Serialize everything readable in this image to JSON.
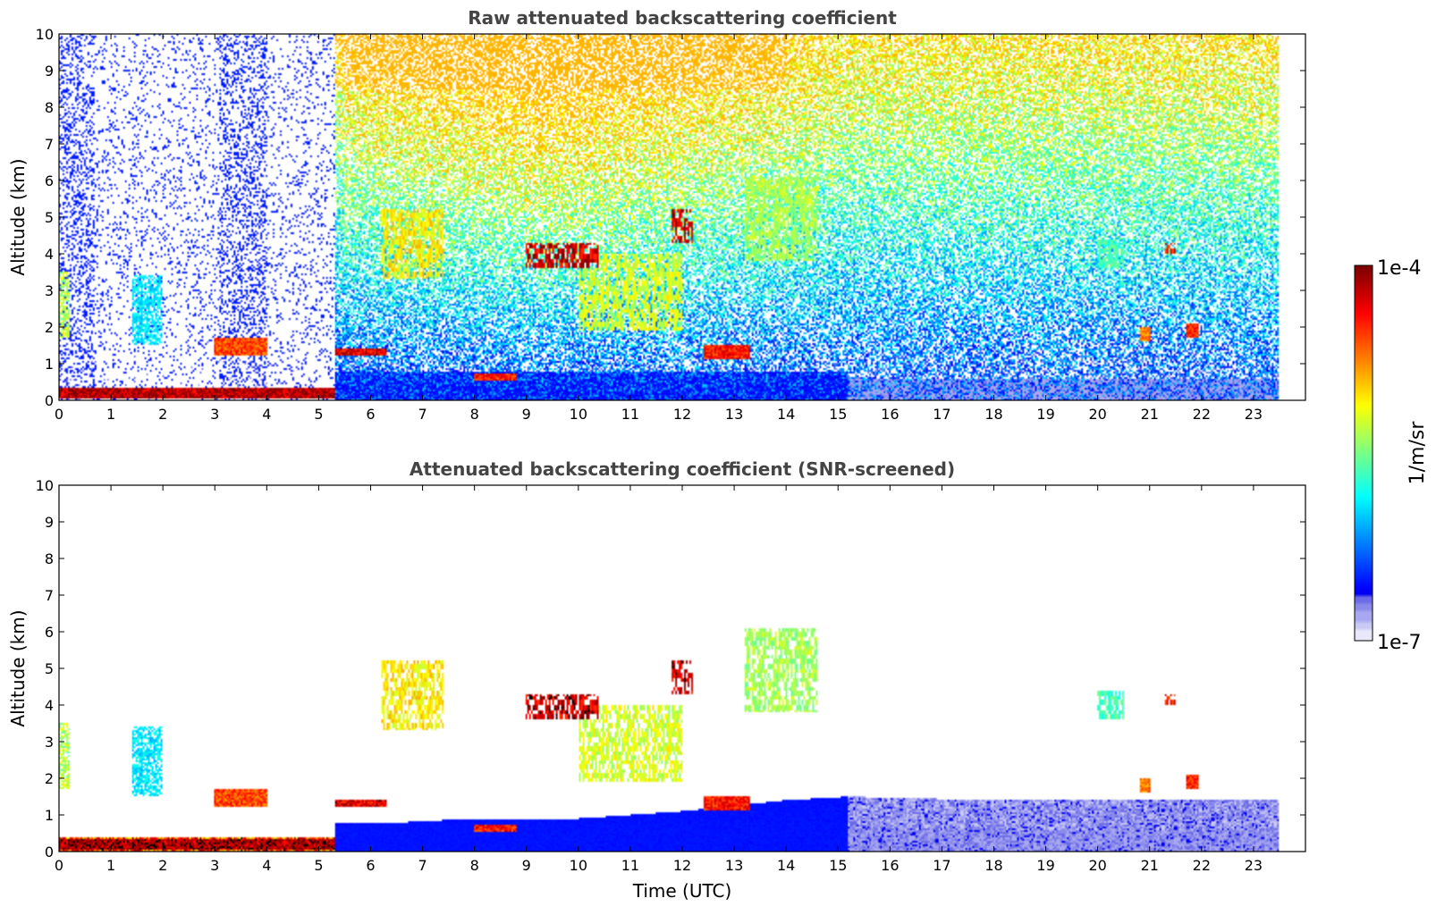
{
  "chart_data": [
    {
      "type": "heatmap",
      "title": "Raw attenuated backscattering coefficient",
      "xlabel": "",
      "ylabel": "Altitude (km)",
      "xlim": [
        0,
        24
      ],
      "ylim": [
        0,
        10
      ],
      "x_ticks": [
        "0",
        "1",
        "2",
        "3",
        "4",
        "5",
        "6",
        "7",
        "8",
        "9",
        "10",
        "11",
        "12",
        "13",
        "14",
        "15",
        "16",
        "17",
        "18",
        "19",
        "20",
        "21",
        "22",
        "23"
      ],
      "y_ticks": [
        "0",
        "1",
        "2",
        "3",
        "4",
        "5",
        "6",
        "7",
        "8",
        "9",
        "10"
      ],
      "data_end_time": 23.5,
      "features": [
        {
          "kind": "surface_layer",
          "t0": 0,
          "t1": 5.3,
          "z0": 0.05,
          "z1": 0.35,
          "intensity": 1.0
        },
        {
          "kind": "boundary_layer",
          "t0": 5.3,
          "t1": 15.2,
          "z0": 0,
          "z1": 0.8,
          "intensity": 0.15
        },
        {
          "kind": "boundary_layer",
          "t0": 15.2,
          "t1": 23.5,
          "z0": 0,
          "z1": 0.6,
          "intensity": 0.07
        },
        {
          "kind": "low_cloud",
          "t0": 5.3,
          "t1": 6.3,
          "z0": 1.2,
          "z1": 1.4,
          "intensity": 0.95
        },
        {
          "kind": "low_cloud",
          "t0": 8.0,
          "t1": 8.8,
          "z0": 0.55,
          "z1": 0.75,
          "intensity": 0.9
        },
        {
          "kind": "low_cloud",
          "t0": 12.4,
          "t1": 13.3,
          "z0": 1.1,
          "z1": 1.5,
          "intensity": 0.9
        },
        {
          "kind": "low_cloud",
          "t0": 3.0,
          "t1": 4.0,
          "z0": 1.2,
          "z1": 1.7,
          "intensity": 0.85
        },
        {
          "kind": "aerosol_layer",
          "t0": 1.4,
          "t1": 2.0,
          "z0": 1.5,
          "z1": 3.4,
          "intensity": 0.35
        },
        {
          "kind": "aerosol_layer",
          "t0": 0,
          "t1": 0.2,
          "z0": 1.7,
          "z1": 3.5,
          "intensity": 0.55
        },
        {
          "kind": "mid_cloud",
          "t0": 6.2,
          "t1": 7.4,
          "z0": 3.3,
          "z1": 5.2,
          "intensity": 0.65
        },
        {
          "kind": "mid_cloud",
          "t0": 9.0,
          "t1": 10.4,
          "z0": 3.6,
          "z1": 4.3,
          "intensity": 0.95
        },
        {
          "kind": "mid_cloud",
          "t0": 10.0,
          "t1": 12.0,
          "z0": 1.9,
          "z1": 4.0,
          "intensity": 0.6
        },
        {
          "kind": "mid_cloud",
          "t0": 11.8,
          "t1": 12.2,
          "z0": 4.3,
          "z1": 5.2,
          "intensity": 0.95
        },
        {
          "kind": "mid_cloud",
          "t0": 13.2,
          "t1": 14.6,
          "z0": 3.8,
          "z1": 6.1,
          "intensity": 0.55
        },
        {
          "kind": "mid_cloud",
          "t0": 20.0,
          "t1": 20.5,
          "z0": 3.6,
          "z1": 4.4,
          "intensity": 0.45
        },
        {
          "kind": "mid_cloud",
          "t0": 21.3,
          "t1": 21.5,
          "z0": 4.0,
          "z1": 4.3,
          "intensity": 0.9
        },
        {
          "kind": "low_cloud",
          "t0": 20.8,
          "t1": 21.0,
          "z0": 1.6,
          "z1": 2.0,
          "intensity": 0.8
        },
        {
          "kind": "low_cloud",
          "t0": 21.7,
          "t1": 21.95,
          "z0": 1.7,
          "z1": 2.1,
          "intensity": 0.9
        }
      ]
    },
    {
      "type": "heatmap",
      "title": "Attenuated backscattering coefficient (SNR-screened)",
      "xlabel": "Time (UTC)",
      "ylabel": "Altitude (km)",
      "xlim": [
        0,
        24
      ],
      "ylim": [
        0,
        10
      ],
      "x_ticks": [
        "0",
        "1",
        "2",
        "3",
        "4",
        "5",
        "6",
        "7",
        "8",
        "9",
        "10",
        "11",
        "12",
        "13",
        "14",
        "15",
        "16",
        "17",
        "18",
        "19",
        "20",
        "21",
        "22",
        "23"
      ],
      "y_ticks": [
        "0",
        "1",
        "2",
        "3",
        "4",
        "5",
        "6",
        "7",
        "8",
        "9",
        "10"
      ],
      "data_end_time": 23.5,
      "screening": "SNR",
      "boundary_layer_top_km": [
        [
          5.3,
          0.7
        ],
        [
          8,
          0.9
        ],
        [
          10,
          0.9
        ],
        [
          12,
          1.1
        ],
        [
          14,
          1.4
        ],
        [
          15.2,
          1.5
        ],
        [
          18,
          1.4
        ],
        [
          23.5,
          1.4
        ]
      ]
    }
  ],
  "colorbar": {
    "label": "1/m/sr",
    "max_label": "1e-4",
    "min_label": "1e-7",
    "colormap": "jet",
    "low_end_colors": [
      "#e8e8fa",
      "#c9c9f5",
      "#a8a8f0",
      "#8a8aeb",
      "#6b6be8"
    ]
  }
}
